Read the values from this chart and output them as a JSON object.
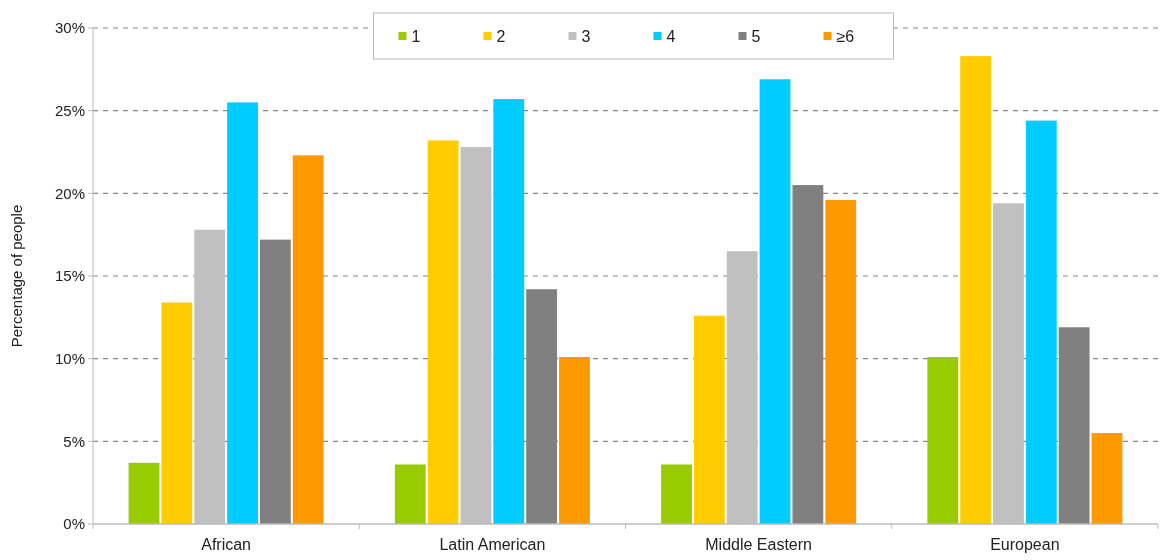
{
  "chart_data": {
    "type": "bar",
    "ylabel": "Percentage of people",
    "categories": [
      "African",
      "Latin American",
      "Middle Eastern",
      "European"
    ],
    "series": [
      {
        "name": "1",
        "color": "#99cc00",
        "values": [
          3.7,
          3.6,
          3.6,
          10.1
        ]
      },
      {
        "name": "2",
        "color": "#ffcc00",
        "values": [
          13.4,
          23.2,
          12.6,
          28.3
        ]
      },
      {
        "name": "3",
        "color": "#c0c0c0",
        "values": [
          17.8,
          22.8,
          16.5,
          19.4
        ]
      },
      {
        "name": "4",
        "color": "#00ccff",
        "values": [
          25.5,
          25.7,
          26.9,
          24.4
        ]
      },
      {
        "name": "5",
        "color": "#808080",
        "values": [
          17.2,
          14.2,
          20.5,
          11.9
        ]
      },
      {
        "name": "≥6",
        "color": "#ff9900",
        "values": [
          22.3,
          10.1,
          19.6,
          5.5
        ]
      }
    ],
    "ylim": [
      0,
      30
    ],
    "yticks": [
      {
        "value": 0,
        "label": "0%"
      },
      {
        "value": 5,
        "label": "5%"
      },
      {
        "value": 10,
        "label": "10%"
      },
      {
        "value": 15,
        "label": "15%"
      },
      {
        "value": 20,
        "label": "20%"
      },
      {
        "value": 25,
        "label": "25%"
      },
      {
        "value": 30,
        "label": "30%"
      }
    ],
    "grid": "y",
    "legend": "top"
  }
}
